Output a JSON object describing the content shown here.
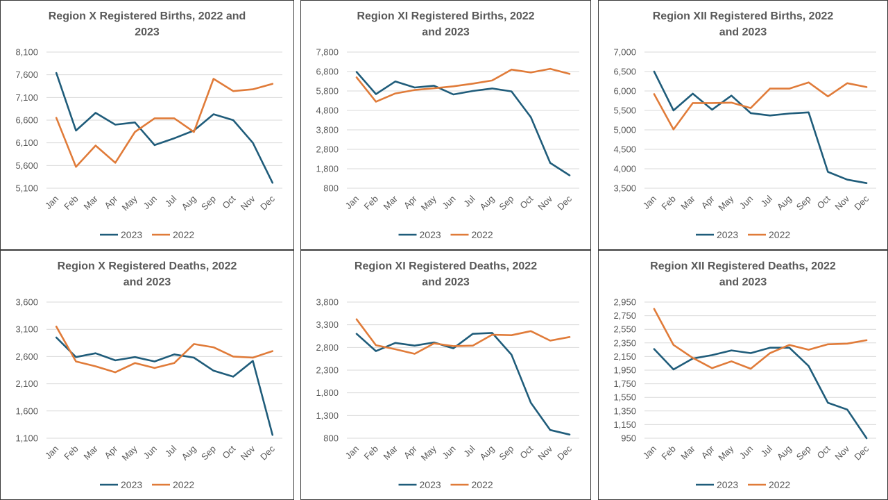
{
  "colors": {
    "series_2023": "#1f5c7a",
    "series_2022": "#e07b39"
  },
  "chart_data": [
    {
      "type": "line",
      "title_lines": [
        "Region X  Registered Births, 2022 and",
        "2023"
      ],
      "categories": [
        "Jan",
        "Feb",
        "Mar",
        "Apr",
        "May",
        "Jun",
        "Jul",
        "Aug",
        "Sep",
        "Oct",
        "Nov",
        "Dec"
      ],
      "yticks": [
        5100,
        5600,
        6100,
        6600,
        7100,
        7600,
        8100
      ],
      "ytick_labels": [
        "5,100",
        "5,600",
        "6,100",
        "6,600",
        "7,100",
        "7,600",
        "8,100"
      ],
      "ylim": [
        5100,
        8100
      ],
      "grid": true,
      "legend": "bottom",
      "series": [
        {
          "name": "2023",
          "values": [
            7640,
            6370,
            6760,
            6500,
            6550,
            6050,
            6200,
            6370,
            6730,
            6600,
            6100,
            5220
          ]
        },
        {
          "name": "2022",
          "values": [
            6650,
            5570,
            6040,
            5660,
            6340,
            6640,
            6640,
            6340,
            7510,
            7240,
            7280,
            7400
          ]
        }
      ]
    },
    {
      "type": "line",
      "title_lines": [
        "Region XI  Registered Births, 2022",
        "and 2023"
      ],
      "categories": [
        "Jan",
        "Feb",
        "Mar",
        "Apr",
        "May",
        "Jun",
        "Jul",
        "Aug",
        "Sep",
        "Oct",
        "Nov",
        "Dec"
      ],
      "yticks": [
        800,
        1800,
        2800,
        3800,
        4800,
        5800,
        6800,
        7800
      ],
      "ytick_labels": [
        "800",
        "1,800",
        "2,800",
        "3,800",
        "4,800",
        "5,800",
        "6,800",
        "7,800"
      ],
      "ylim": [
        800,
        7800
      ],
      "grid": true,
      "legend": "bottom",
      "series": [
        {
          "name": "2023",
          "values": [
            6780,
            5640,
            6290,
            5980,
            6070,
            5620,
            5800,
            5930,
            5780,
            4450,
            2100,
            1460
          ]
        },
        {
          "name": "2022",
          "values": [
            6500,
            5250,
            5670,
            5850,
            5940,
            6040,
            6180,
            6340,
            6900,
            6750,
            6940,
            6680
          ]
        }
      ]
    },
    {
      "type": "line",
      "title_lines": [
        "Region XII  Registered Births, 2022",
        "and 2023"
      ],
      "categories": [
        "Jan",
        "Feb",
        "Mar",
        "Apr",
        "May",
        "Jun",
        "Jul",
        "Aug",
        "Sep",
        "Oct",
        "Nov",
        "Dec"
      ],
      "yticks": [
        3500,
        4000,
        4500,
        5000,
        5500,
        6000,
        6500,
        7000
      ],
      "ytick_labels": [
        "3,500",
        "4,000",
        "4,500",
        "5,000",
        "5,500",
        "6,000",
        "6,500",
        "7,000"
      ],
      "ylim": [
        3500,
        7000
      ],
      "grid": true,
      "legend": "bottom",
      "series": [
        {
          "name": "2023",
          "values": [
            6500,
            5500,
            5930,
            5520,
            5880,
            5430,
            5370,
            5420,
            5450,
            3920,
            3720,
            3630
          ]
        },
        {
          "name": "2022",
          "values": [
            5920,
            5010,
            5690,
            5690,
            5700,
            5560,
            6060,
            6060,
            6220,
            5860,
            6200,
            6100
          ]
        }
      ]
    },
    {
      "type": "line",
      "title_lines": [
        "Region X  Registered Deaths, 2022",
        "and 2023"
      ],
      "categories": [
        "Jan",
        "Feb",
        "Mar",
        "Apr",
        "May",
        "Jun",
        "Jul",
        "Aug",
        "Sep",
        "Oct",
        "Nov",
        "Dec"
      ],
      "yticks": [
        1100,
        1600,
        2100,
        2600,
        3100,
        3600
      ],
      "ytick_labels": [
        "1,100",
        "1,600",
        "2,100",
        "2,600",
        "3,100",
        "3,600"
      ],
      "ylim": [
        1100,
        3600
      ],
      "grid": true,
      "legend": "bottom",
      "series": [
        {
          "name": "2023",
          "values": [
            2950,
            2590,
            2660,
            2530,
            2590,
            2510,
            2640,
            2580,
            2340,
            2230,
            2520,
            1160
          ]
        },
        {
          "name": "2022",
          "values": [
            3150,
            2510,
            2420,
            2310,
            2480,
            2390,
            2480,
            2830,
            2770,
            2600,
            2580,
            2700
          ]
        }
      ]
    },
    {
      "type": "line",
      "title_lines": [
        "Region XI  Registered Deaths, 2022",
        "and 2023"
      ],
      "categories": [
        "Jan",
        "Feb",
        "Mar",
        "Apr",
        "May",
        "Jun",
        "Jul",
        "Aug",
        "Sep",
        "Oct",
        "Nov",
        "Dec"
      ],
      "yticks": [
        800,
        1300,
        1800,
        2300,
        2800,
        3300,
        3800
      ],
      "ytick_labels": [
        "800",
        "1,300",
        "1,800",
        "2,300",
        "2,800",
        "3,300",
        "3,800"
      ],
      "ylim": [
        800,
        3800
      ],
      "grid": true,
      "legend": "bottom",
      "series": [
        {
          "name": "2023",
          "values": [
            3100,
            2720,
            2900,
            2840,
            2910,
            2780,
            3100,
            3120,
            2640,
            1580,
            980,
            880
          ]
        },
        {
          "name": "2022",
          "values": [
            3420,
            2850,
            2760,
            2660,
            2890,
            2830,
            2840,
            3080,
            3070,
            3160,
            2950,
            3030
          ]
        }
      ]
    },
    {
      "type": "line",
      "title_lines": [
        "Region XII  Registered Deaths, 2022",
        "and 2023"
      ],
      "categories": [
        "Jan",
        "Feb",
        "Mar",
        "Apr",
        "May",
        "Jun",
        "Jul",
        "Aug",
        "Sep",
        "Oct",
        "Nov",
        "Dec"
      ],
      "yticks": [
        950,
        1150,
        1350,
        1550,
        1750,
        1950,
        2150,
        2350,
        2550,
        2750,
        2950
      ],
      "ytick_labels": [
        "950",
        "1,150",
        "1,350",
        "1,550",
        "1,750",
        "1,950",
        "2,150",
        "2,350",
        "2,550",
        "2,750",
        "2,950"
      ],
      "ylim": [
        950,
        2950
      ],
      "grid": true,
      "legend": "bottom",
      "series": [
        {
          "name": "2023",
          "values": [
            2260,
            1960,
            2120,
            2170,
            2240,
            2200,
            2280,
            2280,
            2010,
            1470,
            1370,
            950
          ]
        },
        {
          "name": "2022",
          "values": [
            2850,
            2320,
            2130,
            1980,
            2080,
            1970,
            2200,
            2320,
            2250,
            2330,
            2340,
            2390
          ]
        }
      ]
    }
  ]
}
